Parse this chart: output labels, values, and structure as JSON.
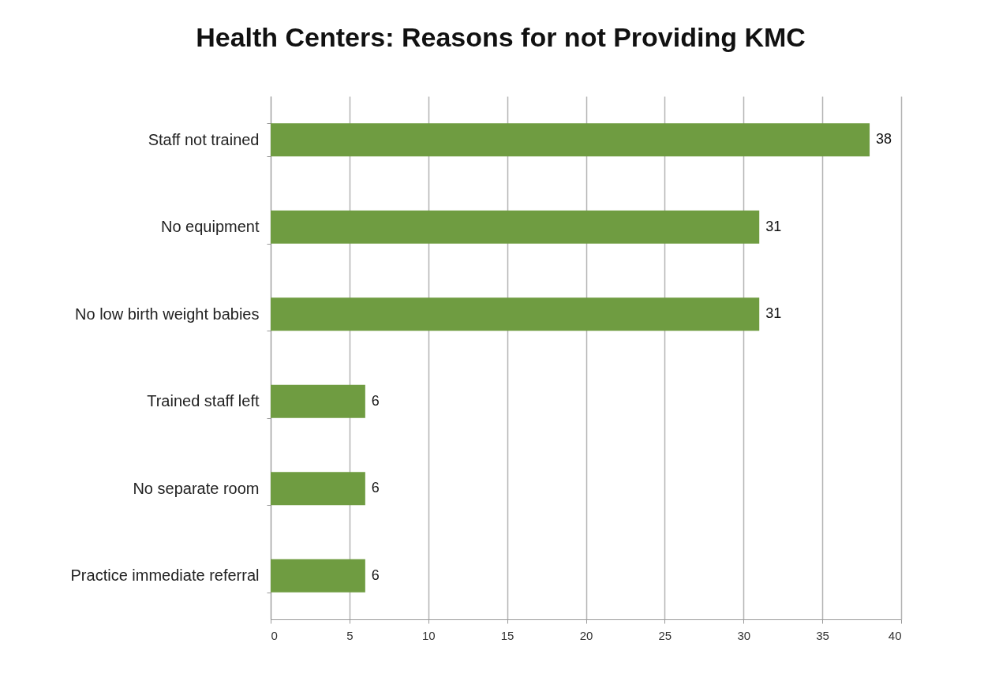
{
  "chart_data": {
    "type": "bar",
    "orientation": "horizontal",
    "title": "Health Centers: Reasons for not Providing KMC",
    "categories": [
      "Staff not trained",
      "No equipment",
      "No low birth weight babies",
      "Trained staff left",
      "No separate room",
      "Practice immediate referral"
    ],
    "values": [
      38,
      31,
      31,
      6,
      6,
      6
    ],
    "color": "#6f9c41",
    "xlim": [
      0,
      40
    ],
    "xticks": [
      0,
      5,
      10,
      15,
      20,
      25,
      30,
      35,
      40
    ],
    "grid": "x",
    "data_labels": true
  }
}
